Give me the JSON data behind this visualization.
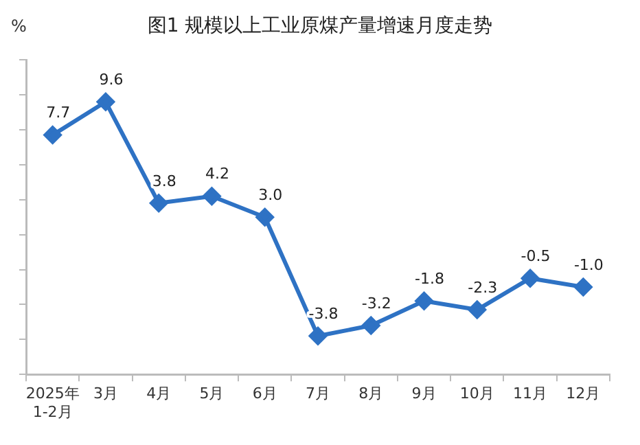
{
  "chart_data": {
    "type": "line",
    "title": "图1  规模以上工业原煤产量增速月度走势",
    "ylabel": "%",
    "categories": [
      "2025年\n1-2月",
      "3月",
      "4月",
      "5月",
      "6月",
      "7月",
      "8月",
      "9月",
      "10月",
      "11月",
      "12月"
    ],
    "series": [
      {
        "color": "#2e72c4",
        "values": [
          7.7,
          9.6,
          3.8,
          4.2,
          3.0,
          -3.8,
          -3.2,
          -1.8,
          -2.3,
          -0.5,
          -1.0
        ],
        "value_labels": [
          "7.7",
          "9.6",
          "3.8",
          "4.2",
          "3.0",
          "-3.8",
          "-3.2",
          "-1.8",
          "-2.3",
          "-0.5",
          "-1.0"
        ]
      }
    ],
    "ylim": [
      -6,
      12
    ],
    "yticks": [
      {
        "value": -6,
        "label": null
      },
      {
        "value": -4,
        "label": null
      },
      {
        "value": -2,
        "label": null
      },
      {
        "value": 0,
        "label": null
      },
      {
        "value": 2,
        "label": null
      },
      {
        "value": 4,
        "label": null
      },
      {
        "value": 6,
        "label": null
      },
      {
        "value": 8,
        "label": null
      },
      {
        "value": 10,
        "label": null
      },
      {
        "value": 12,
        "label": null
      }
    ],
    "marker": "diamond",
    "line_style": "solid",
    "grid": false,
    "legend": false
  }
}
